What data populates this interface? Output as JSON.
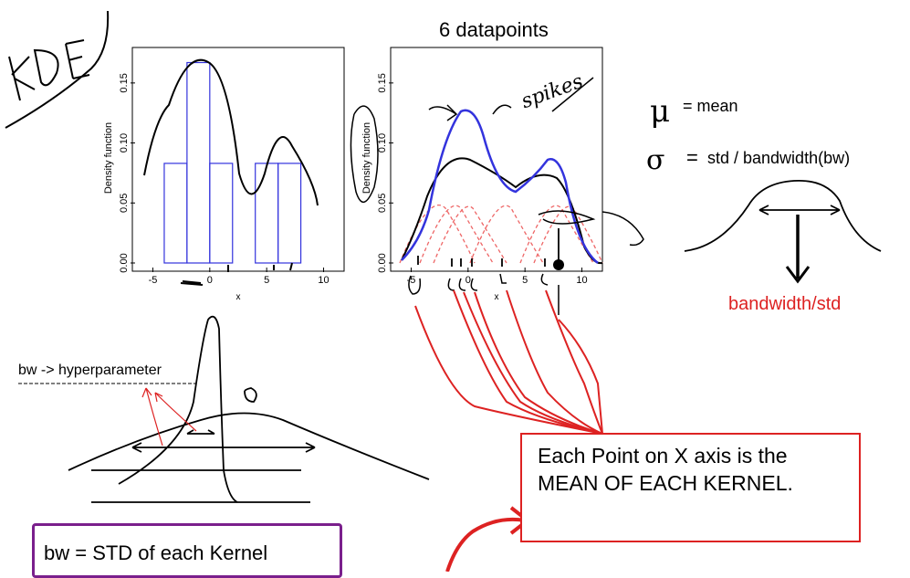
{
  "page_title": "6 datapoints",
  "handwriting": {
    "kde": "KDE",
    "spikes": "spikes",
    "mu": "μ",
    "sigma": "σ"
  },
  "legend": {
    "mean": "= mean",
    "std": "std / bandwidth(bw)",
    "bandwidth_label": "bandwidth/std"
  },
  "hyperparam_label": "bw -> hyperparameter",
  "kernel_box": {
    "line1": "Each Point on X axis is the",
    "line2": "MEAN OF EACH KERNEL."
  },
  "bw_box": "bw = STD of each Kernel",
  "colors": {
    "blue": "#3333dd",
    "red": "#dd2222",
    "purple": "#7a1f8c",
    "pink": "#ee6666"
  },
  "chart_data": [
    {
      "type": "bar",
      "ylabel": "Density function",
      "xlabel": "x",
      "xticks": [
        "-5",
        "0",
        "5",
        "10"
      ],
      "yticks": [
        "0.00",
        "0.05",
        "0.10",
        "0.15"
      ],
      "xlim": [
        -6,
        11
      ],
      "ylim": [
        0,
        0.175
      ],
      "histogram_bins": [
        [
          -4,
          -2
        ],
        [
          -2,
          0
        ],
        [
          0,
          2
        ],
        [
          2,
          4
        ],
        [
          4,
          6
        ],
        [
          6,
          8
        ]
      ],
      "histogram_values": [
        0.083,
        0.167,
        0.083,
        0,
        0.083,
        0.083
      ]
    },
    {
      "type": "line",
      "ylabel": "Density function",
      "xlabel": "x",
      "xticks": [
        "-5",
        "0",
        "5",
        "10"
      ],
      "yticks": [
        "0.00",
        "0.05",
        "0.10",
        "0.15"
      ],
      "xlim": [
        -6,
        11
      ],
      "ylim": [
        0,
        0.175
      ],
      "datapoints": [
        -2.1,
        -1.3,
        -0.4,
        1.9,
        5.1,
        6.2
      ]
    }
  ]
}
